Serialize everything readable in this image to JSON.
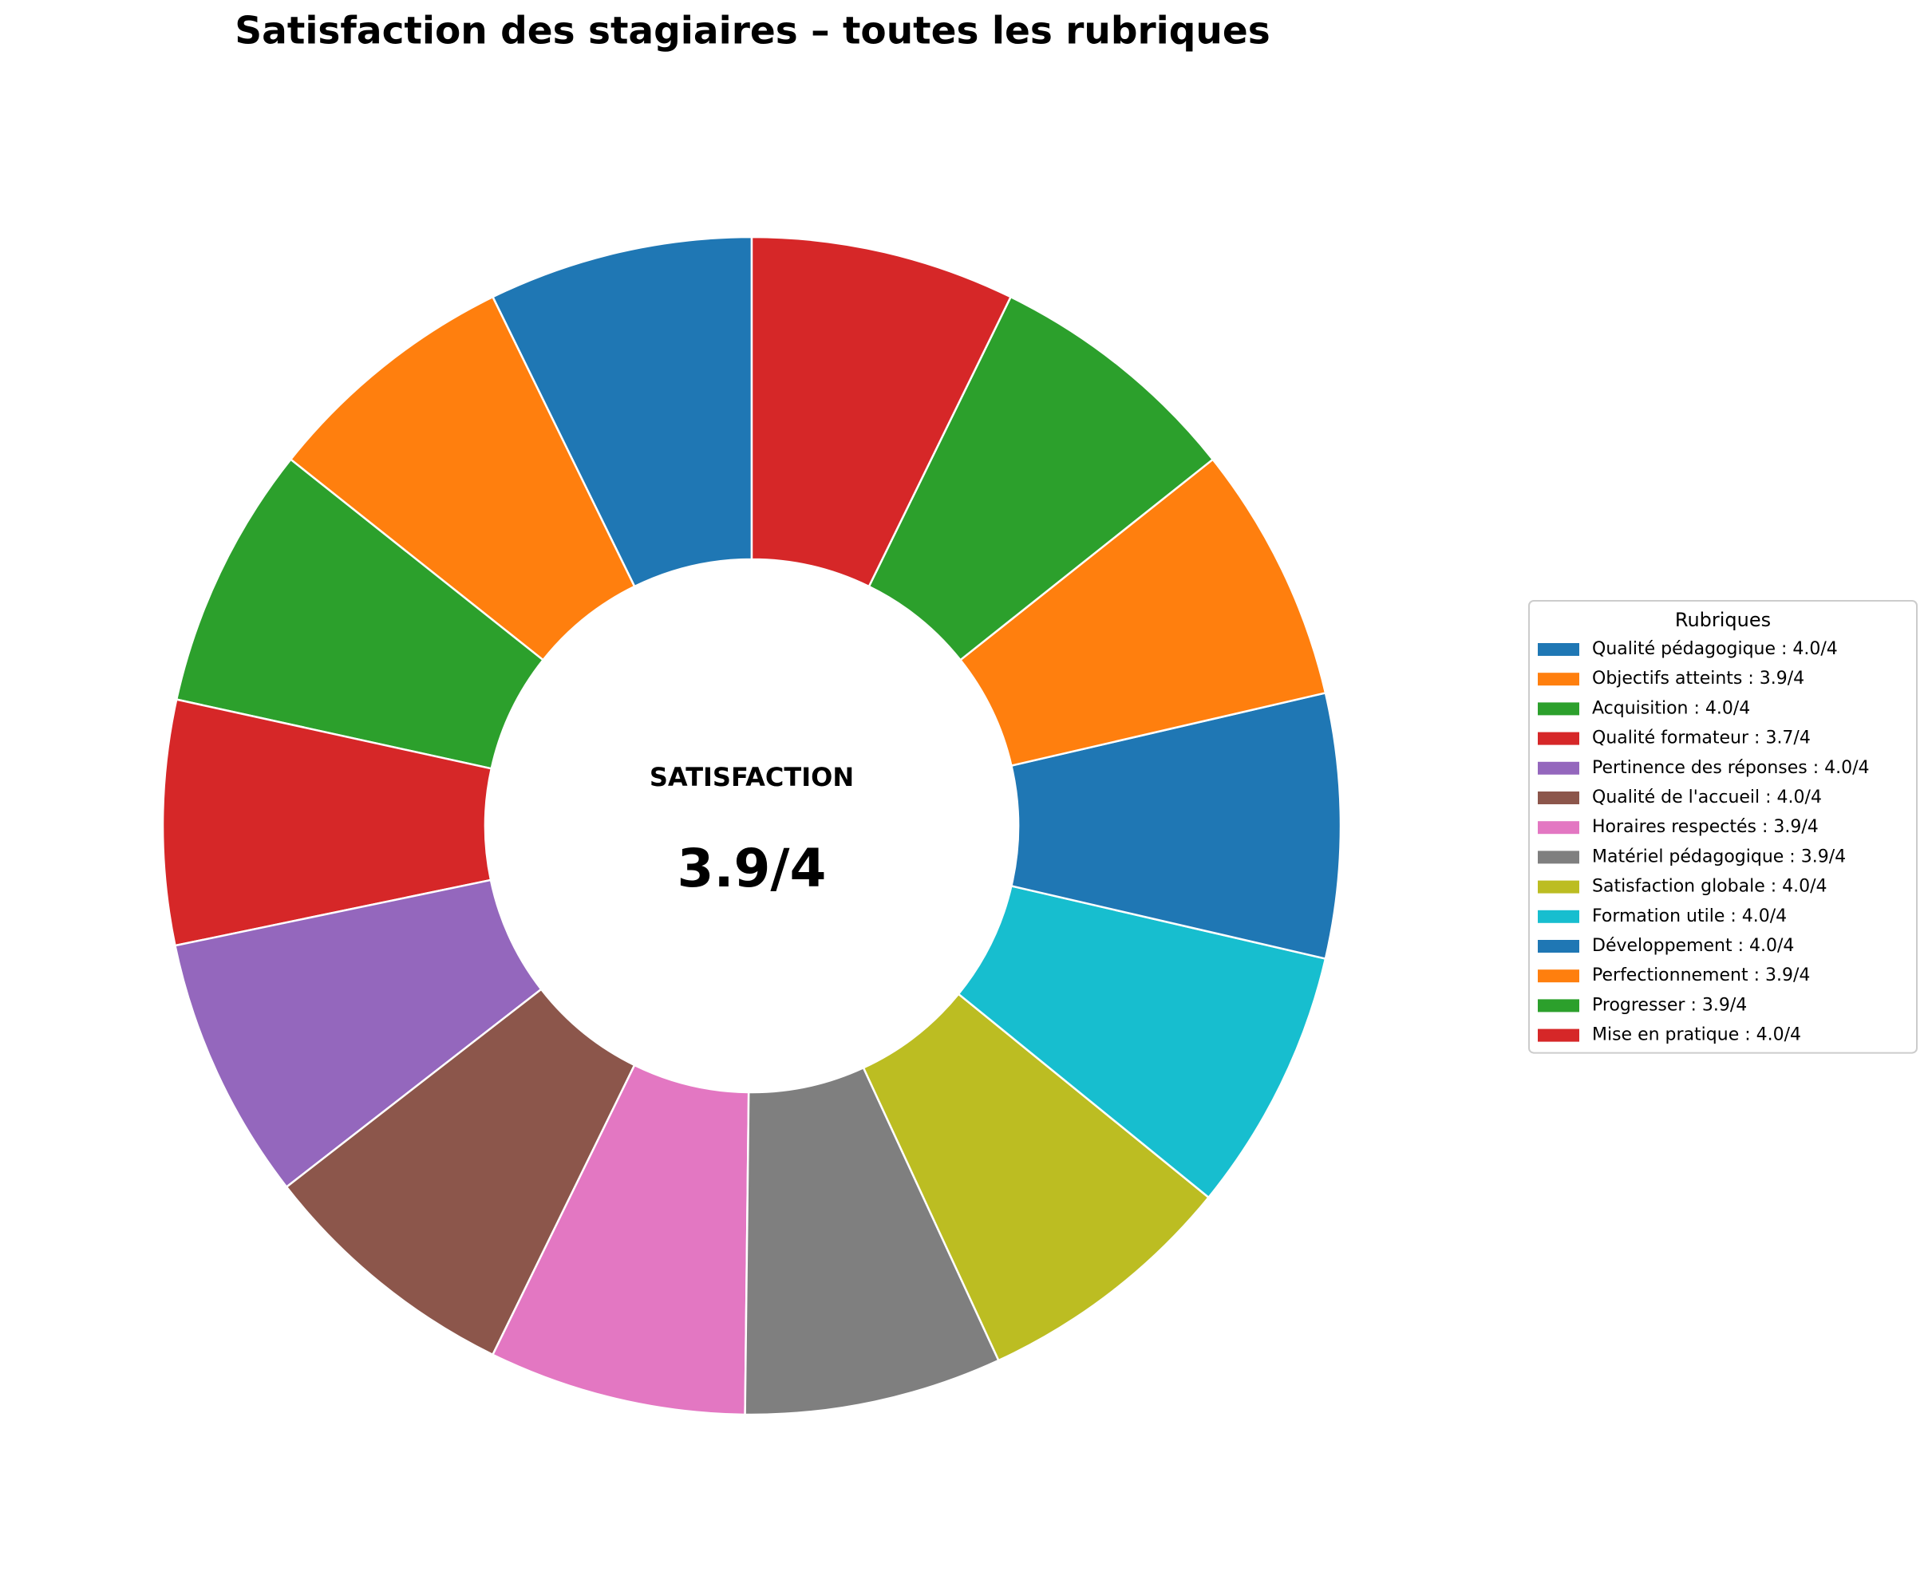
{
  "chart_data": {
    "type": "donut",
    "title": "Satisfaction des stagiaires – toutes les rubriques",
    "center_title": "SATISFACTION",
    "center_value": "3.9/4",
    "legend_title": "Rubriques",
    "legend": "right",
    "categories": [
      "Qualité pédagogique : 4.0/4",
      "Objectifs atteints : 3.9/4",
      "Acquisition : 4.0/4",
      "Qualité formateur : 3.7/4",
      "Pertinence des réponses : 4.0/4",
      "Qualité de l'accueil : 4.0/4",
      "Horaires respectés : 3.9/4",
      "Matériel pédagogique : 3.9/4",
      "Satisfaction globale : 4.0/4",
      "Formation utile : 4.0/4",
      "Développement : 4.0/4",
      "Perfectionnement : 3.9/4",
      "Progresser : 3.9/4",
      "Mise en pratique : 4.0/4"
    ],
    "values": [
      4.0,
      3.9,
      4.0,
      3.7,
      4.0,
      4.0,
      3.9,
      3.9,
      4.0,
      4.0,
      4.0,
      3.9,
      3.9,
      4.0
    ],
    "colors": [
      "#1f77b4",
      "#ff7f0e",
      "#2ca02c",
      "#d62728",
      "#9467bd",
      "#8c564b",
      "#e377c2",
      "#7f7f7f",
      "#bcbd22",
      "#17becf",
      "#1f77b4",
      "#ff7f0e",
      "#2ca02c",
      "#d62728"
    ]
  }
}
